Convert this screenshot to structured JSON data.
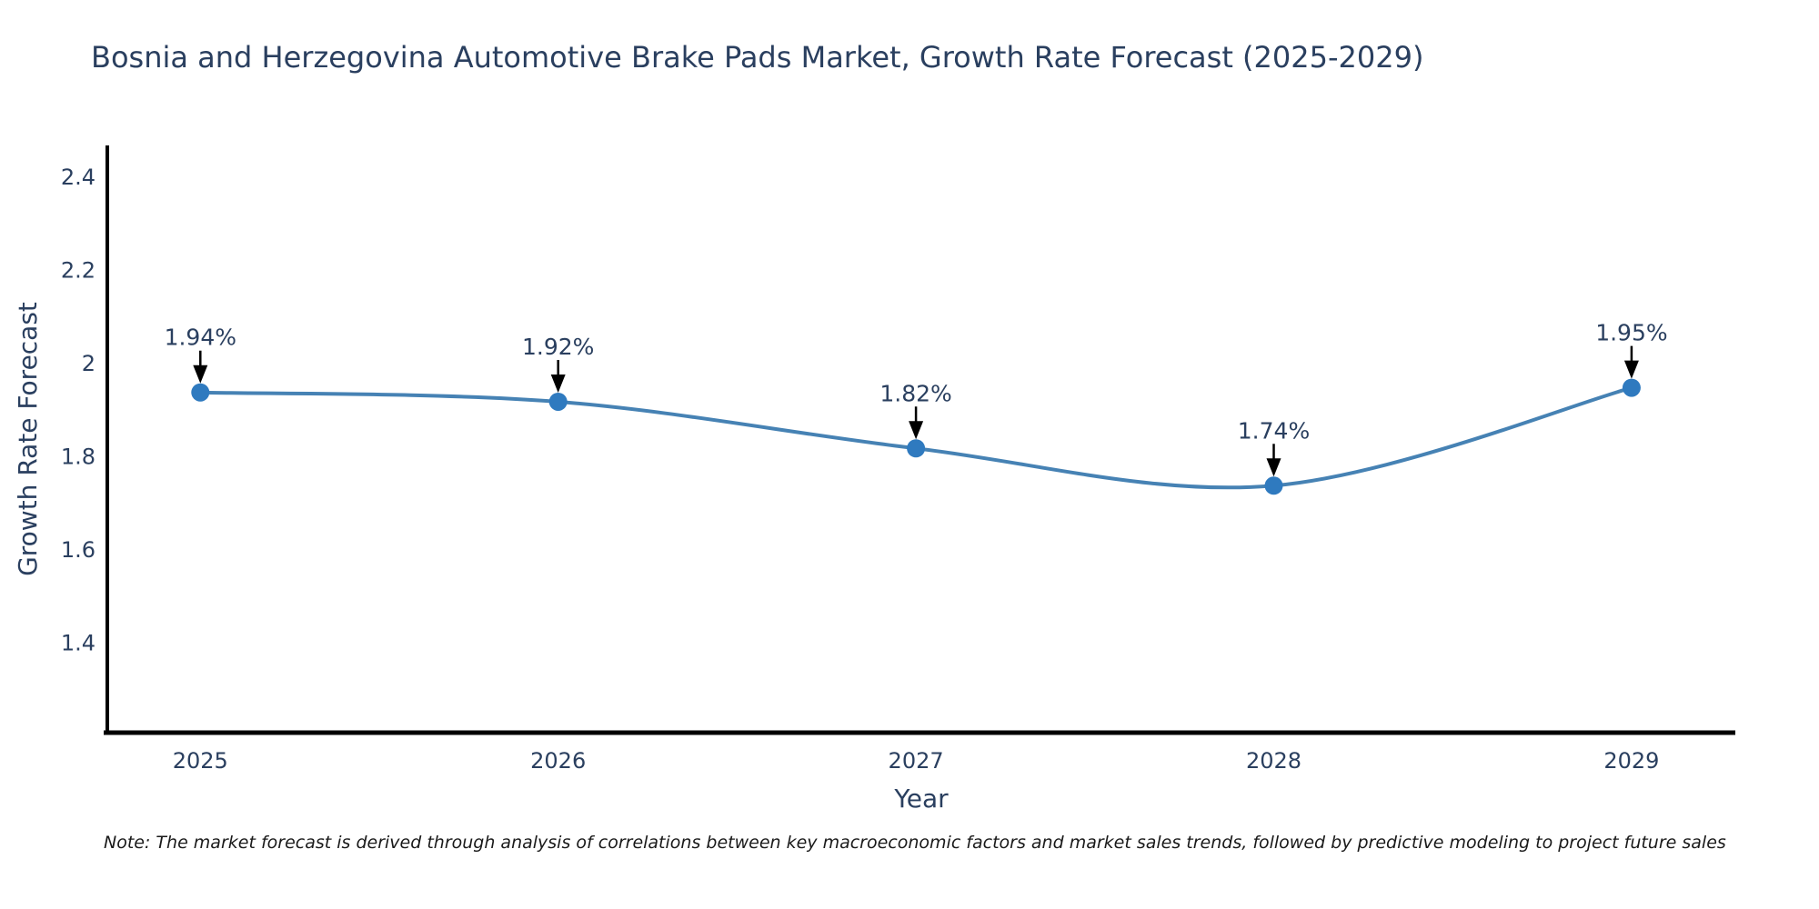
{
  "chart": {
    "title": "Bosnia and Herzegovina Automotive Brake Pads Market, Growth Rate Forecast (2025-2029)",
    "note": "Note: The market forecast is derived through analysis of correlations between key macroeconomic factors and market sales trends, followed by predictive modeling to project future sales"
  },
  "chart_data": {
    "type": "line",
    "title": "Bosnia and Herzegovina Automotive Brake Pads Market, Growth Rate Forecast (2025-2029)",
    "x": [
      2025,
      2026,
      2027,
      2028,
      2029
    ],
    "xtick_labels": [
      "2025",
      "2026",
      "2027",
      "2028",
      "2029"
    ],
    "series": [
      {
        "name": "Growth Rate Forecast",
        "values": [
          1.94,
          1.92,
          1.82,
          1.74,
          1.95
        ]
      }
    ],
    "point_labels": [
      "1.94%",
      "1.92%",
      "1.82%",
      "1.74%",
      "1.95%"
    ],
    "xlabel": "Year",
    "ylabel": "Growth Rate Forecast",
    "xlim": [
      2024.74,
      2029.29
    ],
    "ylim": [
      1.21,
      2.47
    ],
    "yticks": [
      2.4,
      2.2,
      2,
      1.8,
      1.6,
      1.4
    ],
    "ytick_labels": [
      "2.4",
      "2.2",
      "2",
      "1.8",
      "1.6",
      "1.4"
    ],
    "line_shape": "spline",
    "grid": false,
    "legend": "none",
    "colors": {
      "line": "#4682b4",
      "marker": "#2f7abf",
      "axis": "#000000",
      "text": "#2a3f5f",
      "arrow": "#000000"
    }
  }
}
